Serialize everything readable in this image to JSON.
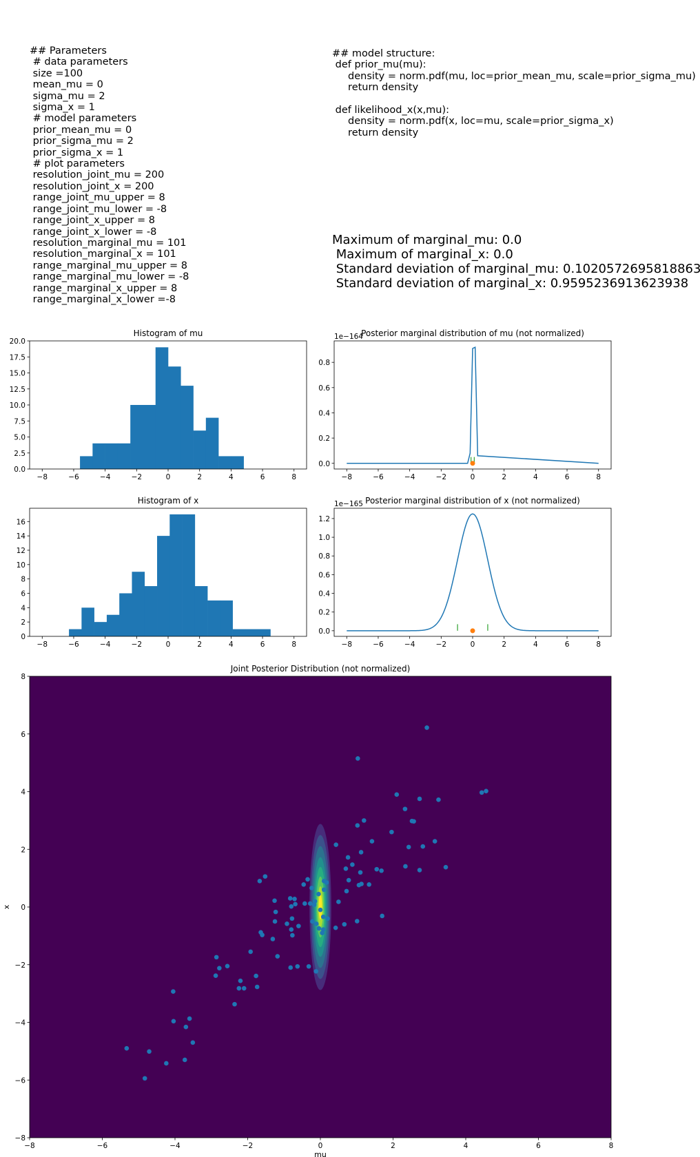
{
  "params_text": "## Parameters\n # data parameters\n size =100\n mean_mu = 0\n sigma_mu = 2\n sigma_x = 1\n # model parameters\n prior_mean_mu = 0\n prior_sigma_mu = 2\n prior_sigma_x = 1\n # plot parameters\n resolution_joint_mu = 200\n resolution_joint_x = 200\n range_joint_mu_upper = 8\n range_joint_mu_lower = -8\n range_joint_x_upper = 8\n range_joint_x_lower = -8\n resolution_marginal_mu = 101\n resolution_marginal_x = 101\n range_marginal_mu_upper = 8\n range_marginal_mu_lower = -8\n range_marginal_x_upper = 8\n range_marginal_x_lower =-8",
  "code_text": "## model structure:\n def prior_mu(mu):\n     density = norm.pdf(mu, loc=prior_mean_mu, scale=prior_sigma_mu)\n     return density\n\n def likelihood_x(x,mu):\n     density = norm.pdf(x, loc=mu, scale=prior_sigma_x)\n     return density",
  "stats_text": "Maximum of marginal_mu: 0.0\n Maximum of marginal_x: 0.0\n Standard deviation of marginal_mu: 0.10205726958188634\n Standard deviation of marginal_x: 0.9595236913623938",
  "colors": {
    "bar": "#1f77b4",
    "line": "#1f77b4",
    "marker": "#ff7f0e",
    "interval": "#2ca02c",
    "background": "#440154"
  },
  "chart_data": [
    {
      "id": "hist_mu",
      "type": "bar",
      "title": "Histogram of mu",
      "xlim": [
        -8.8,
        8.8
      ],
      "ylim": [
        0,
        20
      ],
      "xticks": [
        "−8",
        "−6",
        "−4",
        "−2",
        "0",
        "2",
        "4",
        "6",
        "8"
      ],
      "yticks": [
        "0.0",
        "2.5",
        "5.0",
        "7.5",
        "10.0",
        "12.5",
        "15.0",
        "17.5",
        "20.0"
      ],
      "bins": [
        [
          -5.6,
          -4.8,
          2
        ],
        [
          -4.8,
          -4.0,
          4
        ],
        [
          -4.0,
          -3.2,
          4
        ],
        [
          -3.2,
          -2.4,
          4
        ],
        [
          -2.4,
          -1.6,
          10
        ],
        [
          -1.6,
          -0.8,
          10
        ],
        [
          -0.8,
          0.0,
          19
        ],
        [
          0.0,
          0.8,
          16
        ],
        [
          0.8,
          1.6,
          13
        ],
        [
          1.6,
          2.4,
          6
        ],
        [
          2.4,
          3.2,
          8
        ],
        [
          3.2,
          4.0,
          2
        ],
        [
          4.0,
          4.8,
          2
        ]
      ]
    },
    {
      "id": "marg_mu",
      "type": "line",
      "title": "Posterior marginal distribution of mu (not normalized)",
      "scale_label": "1e−164",
      "xlim": [
        -8.8,
        8.8
      ],
      "ylim": [
        -0.045,
        0.97
      ],
      "xticks": [
        "−8",
        "−6",
        "−4",
        "−2",
        "0",
        "2",
        "4",
        "6",
        "8"
      ],
      "yticks": [
        "0.0",
        "0.2",
        "0.4",
        "0.6",
        "0.8"
      ],
      "x": [
        -8,
        -0.32,
        -0.16,
        0.0,
        0.16,
        0.32,
        8
      ],
      "y": [
        0,
        0,
        0.08,
        0.91,
        0.92,
        0.06,
        0
      ],
      "marker": [
        0,
        0
      ],
      "interval": [
        -0.102,
        0.102
      ],
      "interval_height": 0.05
    },
    {
      "id": "hist_x",
      "type": "bar",
      "title": "Histogram of x",
      "xlim": [
        -8.8,
        8.8
      ],
      "ylim": [
        0,
        17.85
      ],
      "xticks": [
        "−8",
        "−6",
        "−4",
        "−2",
        "0",
        "2",
        "4",
        "6",
        "8"
      ],
      "yticks": [
        "0",
        "2",
        "4",
        "6",
        "8",
        "10",
        "12",
        "14",
        "16"
      ],
      "bins": [
        [
          -6.3,
          -5.5,
          1
        ],
        [
          -5.5,
          -4.7,
          4
        ],
        [
          -4.7,
          -3.9,
          2
        ],
        [
          -3.9,
          -3.1,
          3
        ],
        [
          -3.1,
          -2.3,
          6
        ],
        [
          -2.3,
          -1.5,
          9
        ],
        [
          -1.5,
          -0.7,
          7
        ],
        [
          -0.7,
          0.1,
          14
        ],
        [
          0.1,
          0.9,
          17
        ],
        [
          0.9,
          1.7,
          17
        ],
        [
          1.7,
          2.5,
          7
        ],
        [
          2.5,
          3.3,
          5
        ],
        [
          3.3,
          4.1,
          5
        ],
        [
          4.1,
          4.9,
          1
        ],
        [
          4.9,
          5.7,
          1
        ],
        [
          5.7,
          6.5,
          1
        ]
      ]
    },
    {
      "id": "marg_x",
      "type": "line",
      "title": "Posterior marginal distribution of x (not normalized)",
      "scale_label": "1e−165",
      "xlim": [
        -8.8,
        8.8
      ],
      "ylim": [
        -0.06,
        1.31
      ],
      "xticks": [
        "−8",
        "−6",
        "−4",
        "−2",
        "0",
        "2",
        "4",
        "6",
        "8"
      ],
      "yticks": [
        "0.0",
        "0.2",
        "0.4",
        "0.6",
        "0.8",
        "1.0",
        "1.2"
      ],
      "gaussian": {
        "peak": 1.25,
        "sigma": 0.96,
        "xmin": -8,
        "xmax": 8
      },
      "marker": [
        0,
        0
      ],
      "interval": [
        -0.96,
        0.96
      ],
      "interval_height": 0.07
    },
    {
      "id": "joint",
      "type": "scatter",
      "title": "Joint Posterior Distribution (not normalized)",
      "xlabel": "mu",
      "ylabel": "x",
      "xlim": [
        -8,
        8
      ],
      "ylim": [
        -8,
        8
      ],
      "xticks": [
        "−8",
        "−6",
        "−4",
        "−2",
        "0",
        "2",
        "4",
        "6",
        "8"
      ],
      "yticks": [
        "−8",
        "−6",
        "−4",
        "−2",
        "0",
        "2",
        "4",
        "6",
        "8"
      ],
      "contour": {
        "center": [
          0,
          0
        ],
        "sigma": [
          0.1,
          0.96
        ]
      },
      "points": [
        [
          2.93,
          6.22
        ],
        [
          1.03,
          5.15
        ],
        [
          4.56,
          4.02
        ],
        [
          4.44,
          3.97
        ],
        [
          2.1,
          3.9
        ],
        [
          2.73,
          3.75
        ],
        [
          3.25,
          3.72
        ],
        [
          2.33,
          3.4
        ],
        [
          2.52,
          2.98
        ],
        [
          2.57,
          2.97
        ],
        [
          1.2,
          3.0
        ],
        [
          1.02,
          2.83
        ],
        [
          1.96,
          2.6
        ],
        [
          3.15,
          2.28
        ],
        [
          1.42,
          2.28
        ],
        [
          0.43,
          2.16
        ],
        [
          2.43,
          2.08
        ],
        [
          2.82,
          2.1
        ],
        [
          1.12,
          1.9
        ],
        [
          0.76,
          1.72
        ],
        [
          0.88,
          1.47
        ],
        [
          0.7,
          1.33
        ],
        [
          1.55,
          1.31
        ],
        [
          1.68,
          1.26
        ],
        [
          2.34,
          1.41
        ],
        [
          2.73,
          1.28
        ],
        [
          3.45,
          1.38
        ],
        [
          1.1,
          1.2
        ],
        [
          0.78,
          0.93
        ],
        [
          1.34,
          0.78
        ],
        [
          1.06,
          0.76
        ],
        [
          1.13,
          0.8
        ],
        [
          0.72,
          0.55
        ],
        [
          0.5,
          0.18
        ],
        [
          -1.52,
          1.06
        ],
        [
          -1.67,
          0.9
        ],
        [
          -0.35,
          0.96
        ],
        [
          -0.46,
          0.78
        ],
        [
          -0.24,
          0.66
        ],
        [
          0.1,
          0.9
        ],
        [
          0.17,
          0.85
        ],
        [
          -1.26,
          0.22
        ],
        [
          -0.83,
          0.3
        ],
        [
          -0.71,
          0.28
        ],
        [
          -0.8,
          0.02
        ],
        [
          -0.69,
          0.1
        ],
        [
          -0.43,
          0.12
        ],
        [
          -0.28,
          0.12
        ],
        [
          -0.17,
          0.08
        ],
        [
          -1.23,
          -0.17
        ],
        [
          -1.25,
          -0.5
        ],
        [
          -0.92,
          -0.58
        ],
        [
          -0.78,
          -0.4
        ],
        [
          -0.8,
          -0.78
        ],
        [
          -0.6,
          -0.66
        ],
        [
          -0.77,
          -0.98
        ],
        [
          -1.64,
          -0.88
        ],
        [
          -1.6,
          -0.97
        ],
        [
          -0.22,
          -0.5
        ],
        [
          -0.11,
          -0.58
        ],
        [
          -0.04,
          -0.74
        ],
        [
          0.08,
          -0.78
        ],
        [
          0.08,
          -0.34
        ],
        [
          0.42,
          -0.72
        ],
        [
          0.66,
          -0.6
        ],
        [
          1.01,
          -0.49
        ],
        [
          1.7,
          -0.31
        ],
        [
          -1.31,
          -1.11
        ],
        [
          -1.18,
          -1.71
        ],
        [
          -1.92,
          -1.55
        ],
        [
          -2.86,
          -1.74
        ],
        [
          -2.56,
          -2.05
        ],
        [
          -2.78,
          -2.12
        ],
        [
          -2.88,
          -2.38
        ],
        [
          -1.77,
          -2.39
        ],
        [
          -0.82,
          -2.1
        ],
        [
          -0.63,
          -2.06
        ],
        [
          -0.32,
          -2.06
        ],
        [
          -0.12,
          -2.23
        ],
        [
          -2.2,
          -2.56
        ],
        [
          -2.24,
          -2.82
        ],
        [
          -2.1,
          -2.82
        ],
        [
          -1.74,
          -2.77
        ],
        [
          -2.36,
          -3.37
        ],
        [
          -4.05,
          -2.93
        ],
        [
          -3.6,
          -3.87
        ],
        [
          -4.04,
          -3.96
        ],
        [
          -3.7,
          -4.16
        ],
        [
          -3.51,
          -4.7
        ],
        [
          -5.33,
          -4.9
        ],
        [
          -4.71,
          -5.01
        ],
        [
          -4.24,
          -5.42
        ],
        [
          -3.73,
          -5.3
        ],
        [
          -4.83,
          -5.94
        ],
        [
          -0.05,
          0.45
        ],
        [
          0.0,
          -0.1
        ],
        [
          0.1,
          0.6
        ],
        [
          0.2,
          -0.4
        ],
        [
          0.05,
          -0.9
        ],
        [
          -0.15,
          0.2
        ]
      ]
    }
  ]
}
